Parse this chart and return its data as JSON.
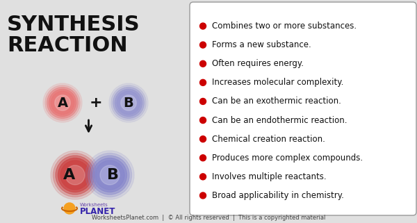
{
  "bg_color": "#e0e0e0",
  "title_line1": "SYNTHESIS",
  "title_line2": "REACTION",
  "title_color": "#111111",
  "title_fontsize": 22,
  "bullet_items": [
    "Combines two or more substances.",
    "Forms a new substance.",
    "Often requires energy.",
    "Increases molecular complexity.",
    "Can be an exothermic reaction.",
    "Can be an endothermic reaction.",
    "Chemical creation reaction.",
    "Produces more complex compounds.",
    "Involves multiple reactants.",
    "Broad applicability in chemistry."
  ],
  "bullet_color": "#cc0000",
  "bullet_text_color": "#111111",
  "bullet_fontsize": 8.5,
  "box_bg": "#ffffff",
  "box_edge": "#999999",
  "footer_text": "WorksheetsPlanet.com  |  © All rights reserved  |  This is a copyrighted material",
  "footer_color": "#444444",
  "footer_fontsize": 6.0,
  "logo_text1": "Worksheets",
  "logo_text2": "PLANET",
  "logo_color1": "#6644aa",
  "logo_color2": "#3322aa"
}
